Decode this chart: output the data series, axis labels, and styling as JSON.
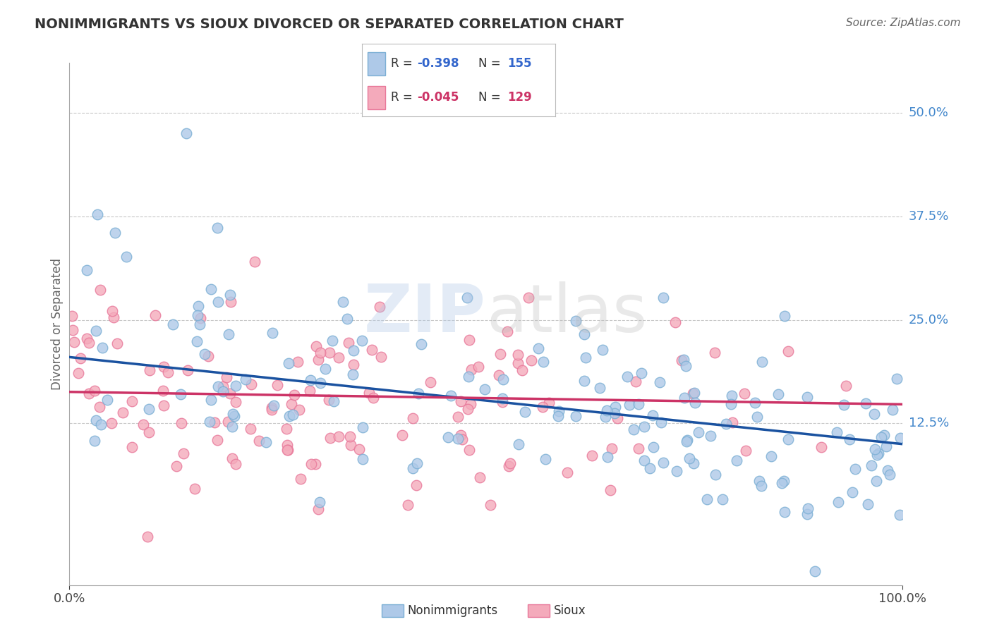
{
  "title": "NONIMMIGRANTS VS SIOUX DIVORCED OR SEPARATED CORRELATION CHART",
  "source": "Source: ZipAtlas.com",
  "ylabel": "Divorced or Separated",
  "xlim": [
    0.0,
    1.0
  ],
  "ylim": [
    -0.07,
    0.56
  ],
  "ytick_labels": [
    "12.5%",
    "25.0%",
    "37.5%",
    "50.0%"
  ],
  "ytick_values": [
    0.125,
    0.25,
    0.375,
    0.5
  ],
  "blue_color": "#7bafd4",
  "blue_fill": "#aec9e8",
  "pink_color": "#e8789a",
  "pink_fill": "#f4aabb",
  "trend_blue": "#1a52a0",
  "trend_pink": "#cc3366",
  "watermark": "ZIPatlas",
  "background": "#ffffff",
  "grid_color": "#c8c8c8",
  "title_color": "#333333",
  "axis_label_color": "#666666",
  "ytick_color": "#4488cc",
  "source_color": "#666666",
  "blue_R": -0.398,
  "blue_N": 155,
  "pink_R": -0.045,
  "pink_N": 129,
  "blue_trend_start_y": 0.205,
  "blue_trend_end_y": 0.1,
  "pink_trend_start_y": 0.163,
  "pink_trend_end_y": 0.148
}
